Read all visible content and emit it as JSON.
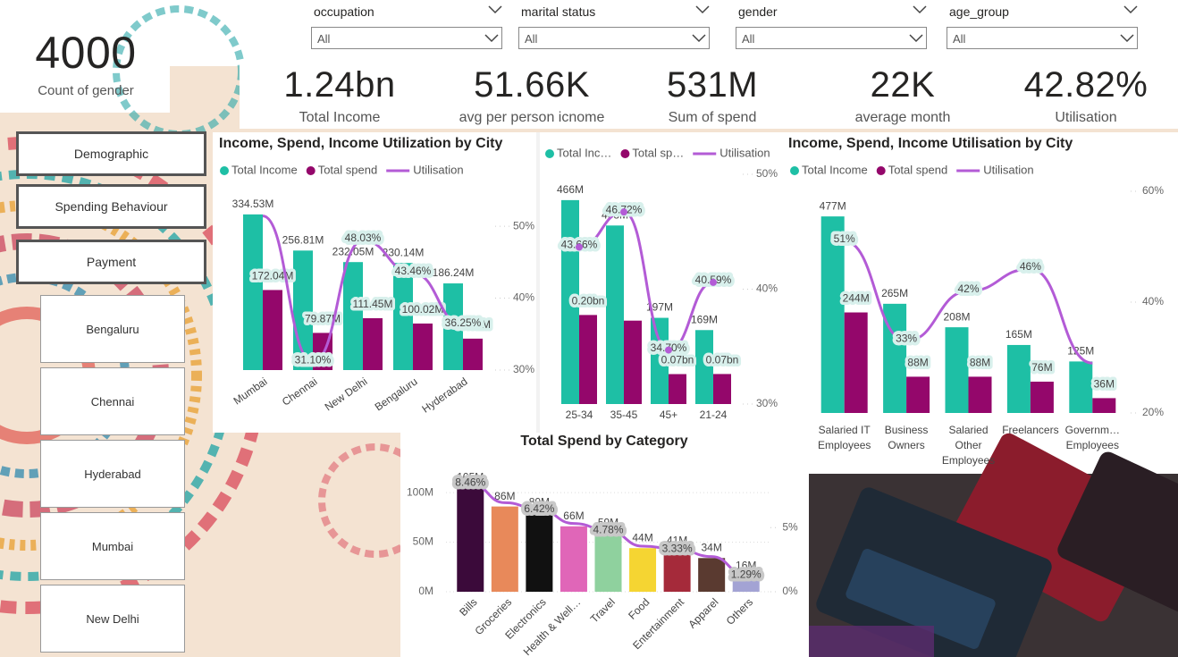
{
  "filters": [
    {
      "label": "occupation",
      "value": "All"
    },
    {
      "label": "marital status",
      "value": "All"
    },
    {
      "label": "gender",
      "value": "All"
    },
    {
      "label": "age_group",
      "value": "All"
    }
  ],
  "count_card": {
    "value": "4000",
    "label": "Count of gender"
  },
  "kpis": [
    {
      "value": "1.24bn",
      "label": "Total Income"
    },
    {
      "value": "51.66K",
      "label": "avg per person icnome"
    },
    {
      "value": "531M",
      "label": "Sum of spend"
    },
    {
      "value": "22K",
      "label": "average month"
    },
    {
      "value": "42.82%",
      "label": "Utilisation"
    }
  ],
  "nav_buttons": [
    "Demographic",
    "Spending Behaviour",
    "Payment"
  ],
  "city_buttons": [
    "Bengaluru",
    "Chennai",
    "Hyderabad",
    "Mumbai",
    "New Delhi"
  ],
  "chart_data": [
    {
      "type": "combo",
      "title": "Income, Spend, Income Utilization by City",
      "categories": [
        "Mumbai",
        "Chennai",
        "New Delhi",
        "Bengaluru",
        "Hyderabad"
      ],
      "series": [
        {
          "name": "Total Income",
          "type": "bar",
          "color": "#1ebfa5",
          "values": [
            334.53,
            256.81,
            232.05,
            230.14,
            186.24
          ],
          "value_labels": [
            "334.53M",
            "256.81M",
            "232.05M",
            "230.14M",
            "186.24M"
          ]
        },
        {
          "name": "Total spend",
          "type": "bar",
          "color": "#94076b",
          "values": [
            172.04,
            79.87,
            111.45,
            100.02,
            67.52
          ],
          "value_labels": [
            "172.04M",
            "79.87M",
            "111.45M",
            "100.02M",
            "67.52M"
          ]
        },
        {
          "name": "Utilisation",
          "type": "line",
          "axis": "y2",
          "color": "#b35bd6",
          "values": [
            51.43,
            31.1,
            48.03,
            43.46,
            36.25
          ],
          "value_labels": [
            null,
            "31.10%",
            "48.03%",
            "43.46%",
            "36.25%"
          ]
        }
      ],
      "ylim": [
        0,
        340
      ],
      "y2lim": [
        30,
        52
      ],
      "y2ticks": [
        {
          "value": 30,
          "label": "30%"
        },
        {
          "value": 40,
          "label": "40%"
        },
        {
          "value": 50,
          "label": "50%"
        }
      ],
      "legend": "top-left"
    },
    {
      "type": "combo",
      "categories": [
        "25-34",
        "35-45",
        "45+",
        "21-24"
      ],
      "series": [
        {
          "name": "Total Inc…",
          "type": "bar",
          "color": "#1ebfa5",
          "values": [
            466,
            408,
            197,
            169
          ],
          "value_labels": [
            "466M",
            "408M",
            "197M",
            "169M"
          ]
        },
        {
          "name": "Total sp…",
          "type": "bar",
          "color": "#94076b",
          "values": [
            203.5,
            190.6,
            68.4,
            68.6
          ],
          "value_labels": [
            "0.20bn",
            null,
            "0.07bn",
            "0.07bn"
          ]
        },
        {
          "name": "Utilisation",
          "type": "line",
          "axis": "y2",
          "color": "#b35bd6",
          "values": [
            43.66,
            46.72,
            34.7,
            40.59
          ],
          "value_labels": [
            "43.66%",
            "46.72%",
            "34.70%",
            "40.59%"
          ]
        }
      ],
      "ylim": [
        0,
        525
      ],
      "y2lim": [
        30,
        50
      ],
      "y2ticks": [
        {
          "value": 30,
          "label": "30%"
        },
        {
          "value": 40,
          "label": "40%"
        },
        {
          "value": 50,
          "label": "50%"
        }
      ],
      "legend": "top-left"
    },
    {
      "type": "combo",
      "title": "Income, Spend, Income Utilisation by City",
      "categories": [
        "Salaried IT Employees",
        "Business Owners",
        "Salaried Other Employees",
        "Freelancers",
        "Governm… Employees"
      ],
      "series": [
        {
          "name": "Total Income",
          "type": "bar",
          "color": "#1ebfa5",
          "values": [
            477,
            265,
            208,
            165,
            125
          ],
          "value_labels": [
            "477M",
            "265M",
            "208M",
            "165M",
            "125M"
          ]
        },
        {
          "name": "Total spend",
          "type": "bar",
          "color": "#94076b",
          "values": [
            244,
            88,
            88,
            76,
            36
          ],
          "value_labels": [
            "244M",
            "88M",
            "88M",
            "76M",
            "36M"
          ]
        },
        {
          "name": "Utilisation",
          "type": "line",
          "axis": "y2",
          "color": "#b35bd6",
          "values": [
            51,
            33,
            42,
            46,
            29
          ],
          "value_labels": [
            "51%",
            "33%",
            "42%",
            "46%",
            null
          ]
        }
      ],
      "ylim": [
        0,
        538
      ],
      "y2lim": [
        20,
        60
      ],
      "y2ticks": [
        {
          "value": 20,
          "label": "20%"
        },
        {
          "value": 40,
          "label": "40%"
        },
        {
          "value": 60,
          "label": "60%"
        }
      ],
      "legend": "top-left"
    },
    {
      "type": "combo",
      "title": "Total Spend by Category",
      "categories": [
        "Bills",
        "Groceries",
        "Electronics",
        "Health & Well…",
        "Travel",
        "Food",
        "Entertainment",
        "Apparel",
        "Others"
      ],
      "series": [
        {
          "type": "bar",
          "colors": [
            "#3b0a3a",
            "#e8895a",
            "#111111",
            "#e066b8",
            "#8fd19e",
            "#f5d532",
            "#a52a3a",
            "#5a3a30",
            "#a3a3d4"
          ],
          "values": [
            105,
            86,
            80,
            66,
            59,
            44,
            41,
            34,
            16
          ],
          "value_labels": [
            "105M",
            "86M",
            "80M",
            "66M",
            "59M",
            "44M",
            "41M",
            "34M",
            "16M"
          ]
        },
        {
          "type": "line",
          "axis": "y2",
          "color": "#b35bd6",
          "values": [
            8.46,
            6.94,
            6.42,
            5.32,
            4.78,
            3.55,
            3.33,
            2.74,
            1.29
          ],
          "value_labels": [
            "8.46%",
            null,
            "6.42%",
            null,
            "4.78%",
            null,
            "3.33%",
            null,
            "1.29%"
          ]
        }
      ],
      "ylim": [
        0,
        110
      ],
      "yticks": [
        {
          "value": 0,
          "label": "0M"
        },
        {
          "value": 50,
          "label": "50M"
        },
        {
          "value": 100,
          "label": "100M"
        }
      ],
      "y2lim": [
        0,
        8.5
      ],
      "y2ticks": [
        {
          "value": 0,
          "label": "0%"
        },
        {
          "value": 5,
          "label": "5%"
        }
      ],
      "grid": true
    }
  ]
}
